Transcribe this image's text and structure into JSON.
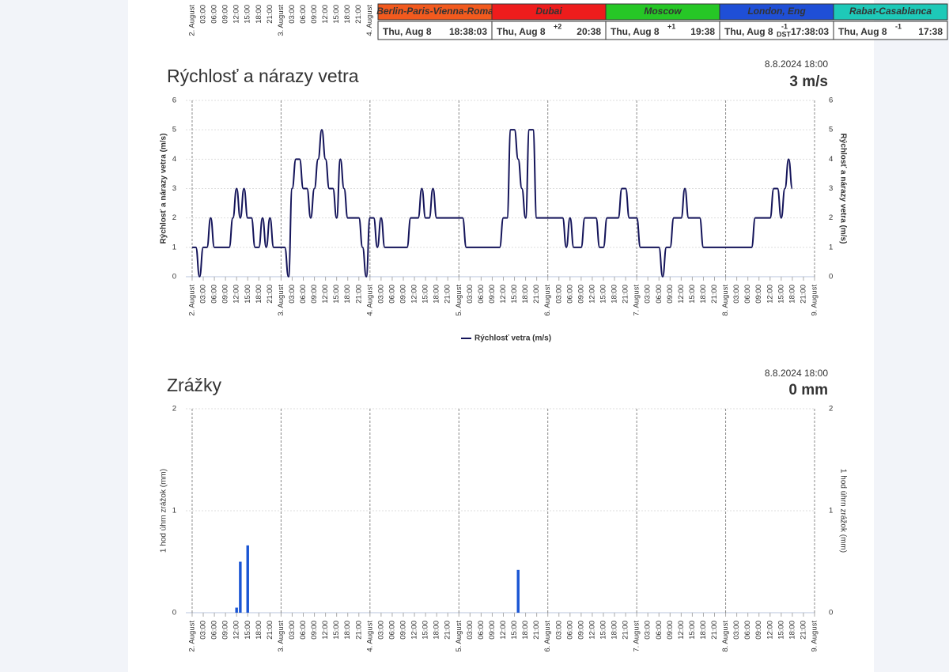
{
  "clocks": [
    {
      "city": "Berlin-Paris-Vienna-Roma",
      "color": "#f25a1e",
      "date": "Thu, Aug 8",
      "time": "18:38:03"
    },
    {
      "city": "Dubai",
      "color": "#ee1c1c",
      "date": "Thu, Aug 8",
      "offset": "+2",
      "time": "20:38"
    },
    {
      "city": "Moscow",
      "color": "#26c726",
      "date": "Thu, Aug 8",
      "offset": "+1",
      "time": "19:38"
    },
    {
      "city": "London, Eng",
      "color": "#1f4fd6",
      "date": "Thu, Aug 8",
      "offset": "-1",
      "dst": "DST",
      "time": "17:38:03"
    },
    {
      "city": "Rabat-Casablanca",
      "color": "#1ec9b8",
      "date": "Thu, Aug 8",
      "offset": "-1",
      "time": "17:38"
    }
  ],
  "top_axis_labels": [
    "2. August",
    "03:00",
    "06:00",
    "09:00",
    "12:00",
    "15:00",
    "18:00",
    "21:00",
    "3. August",
    "03:00",
    "06:00",
    "09:00",
    "12:00",
    "15:00",
    "18:00",
    "21:00",
    "4. August"
  ],
  "chart_data": [
    {
      "type": "line",
      "title": "Rýchlosť a nárazy vetra",
      "title_color": "#14145a",
      "timestamp": "8.8.2024 18:00",
      "current": "3 m/s",
      "ylabel": "Rýchlosť a nárazy vetra (m/s)",
      "y2label": "Rýchlosť a nárazy vetra (m/s)",
      "x": [
        0,
        1,
        2,
        3,
        4,
        5,
        6,
        7,
        8,
        9,
        10,
        11,
        12,
        13,
        14,
        15,
        16,
        17,
        18,
        19,
        20,
        21,
        22,
        23,
        24,
        25,
        26,
        27,
        28,
        29,
        30,
        31,
        32,
        33,
        34,
        35,
        36,
        37,
        38,
        39,
        40,
        41,
        42,
        43,
        44,
        45,
        46,
        47,
        48,
        49,
        50,
        51,
        52,
        53,
        54,
        55,
        56,
        57,
        58,
        59,
        60,
        61,
        62,
        63,
        64,
        65,
        66,
        67,
        68,
        69,
        70,
        71,
        72,
        73,
        74,
        75,
        76,
        77,
        78,
        79,
        80,
        81,
        82,
        83,
        84,
        85,
        86,
        87,
        88,
        89,
        90,
        91,
        92,
        93,
        94,
        95,
        96,
        97,
        98,
        99,
        100,
        101,
        102,
        103,
        104,
        105,
        106,
        107,
        108,
        109,
        110,
        111,
        112,
        113,
        114,
        115,
        116,
        117,
        118,
        119,
        120,
        121,
        122,
        123,
        124,
        125,
        126,
        127,
        128,
        129,
        130,
        131,
        132,
        133,
        134,
        135,
        136,
        137,
        138,
        139,
        140,
        141,
        142,
        143,
        144,
        145,
        146,
        147,
        148,
        149,
        150,
        151,
        152,
        153,
        154,
        155,
        156,
        157,
        158,
        159,
        160,
        161,
        162
      ],
      "series": [
        {
          "name": "Rýchlosť vetra (m/s)",
          "color": "#14145a",
          "values": [
            1,
            1,
            0,
            1,
            1,
            2,
            1,
            1,
            1,
            1,
            1,
            2,
            3,
            2,
            3,
            2,
            2,
            1,
            1,
            2,
            1,
            2,
            1,
            1,
            1,
            1,
            0,
            3,
            4,
            4,
            3,
            3,
            2,
            3,
            4,
            5,
            4,
            3,
            3,
            2,
            4,
            3,
            2,
            2,
            2,
            2,
            1,
            0,
            2,
            2,
            1,
            2,
            1,
            1,
            1,
            1,
            1,
            1,
            1,
            2,
            2,
            2,
            3,
            2,
            2,
            3,
            2,
            2,
            2,
            2,
            2,
            2,
            2,
            2,
            1,
            1,
            1,
            1,
            1,
            1,
            1,
            1,
            1,
            1,
            2,
            2,
            5,
            5,
            4,
            3,
            2,
            5,
            5,
            2,
            2,
            2,
            2,
            2,
            2,
            2,
            2,
            1,
            2,
            1,
            1,
            1,
            2,
            2,
            2,
            2,
            1,
            1,
            2,
            2,
            2,
            2,
            3,
            3,
            2,
            2,
            2,
            1,
            1,
            1,
            1,
            1,
            1,
            0,
            1,
            1,
            2,
            2,
            2,
            3,
            2,
            2,
            2,
            2,
            1,
            1,
            1,
            1,
            1,
            1,
            1,
            1,
            1,
            1,
            1,
            1,
            1,
            1,
            2,
            2,
            2,
            2,
            2,
            3,
            3,
            2,
            3,
            4,
            3
          ]
        }
      ],
      "xlim": [
        -1.7,
        168
      ],
      "xticks": [
        {
          "value": 0,
          "label": "2. August"
        },
        {
          "value": 3,
          "label": "03:00"
        },
        {
          "value": 6,
          "label": "06:00"
        },
        {
          "value": 9,
          "label": "09:00"
        },
        {
          "value": 12,
          "label": "12:00"
        },
        {
          "value": 15,
          "label": "15:00"
        },
        {
          "value": 18,
          "label": "18:00"
        },
        {
          "value": 21,
          "label": "21:00"
        },
        {
          "value": 24,
          "label": "3. August"
        },
        {
          "value": 27,
          "label": "03:00"
        },
        {
          "value": 30,
          "label": "06:00"
        },
        {
          "value": 33,
          "label": "09:00"
        },
        {
          "value": 36,
          "label": "12:00"
        },
        {
          "value": 39,
          "label": "15:00"
        },
        {
          "value": 42,
          "label": "18:00"
        },
        {
          "value": 45,
          "label": "21:00"
        },
        {
          "value": 48,
          "label": "4. August"
        },
        {
          "value": 51,
          "label": "03:00"
        },
        {
          "value": 54,
          "label": "06:00"
        },
        {
          "value": 57,
          "label": "09:00"
        },
        {
          "value": 60,
          "label": "12:00"
        },
        {
          "value": 63,
          "label": "15:00"
        },
        {
          "value": 66,
          "label": "18:00"
        },
        {
          "value": 69,
          "label": "21:00"
        },
        {
          "value": 72,
          "label": "5. August"
        },
        {
          "value": 75,
          "label": "03:00"
        },
        {
          "value": 78,
          "label": "06:00"
        },
        {
          "value": 81,
          "label": "09:00"
        },
        {
          "value": 84,
          "label": "12:00"
        },
        {
          "value": 87,
          "label": "15:00"
        },
        {
          "value": 90,
          "label": "18:00"
        },
        {
          "value": 93,
          "label": "21:00"
        },
        {
          "value": 96,
          "label": "6. August"
        },
        {
          "value": 99,
          "label": "03:00"
        },
        {
          "value": 102,
          "label": "06:00"
        },
        {
          "value": 105,
          "label": "09:00"
        },
        {
          "value": 108,
          "label": "12:00"
        },
        {
          "value": 111,
          "label": "15:00"
        },
        {
          "value": 114,
          "label": "18:00"
        },
        {
          "value": 117,
          "label": "21:00"
        },
        {
          "value": 120,
          "label": "7. August"
        },
        {
          "value": 123,
          "label": "03:00"
        },
        {
          "value": 126,
          "label": "06:00"
        },
        {
          "value": 129,
          "label": "09:00"
        },
        {
          "value": 132,
          "label": "12:00"
        },
        {
          "value": 135,
          "label": "15:00"
        },
        {
          "value": 138,
          "label": "18:00"
        },
        {
          "value": 141,
          "label": "21:00"
        },
        {
          "value": 144,
          "label": "8. August"
        },
        {
          "value": 147,
          "label": "03:00"
        },
        {
          "value": 150,
          "label": "06:00"
        },
        {
          "value": 153,
          "label": "09:00"
        },
        {
          "value": 156,
          "label": "12:00"
        },
        {
          "value": 159,
          "label": "15:00"
        },
        {
          "value": 162,
          "label": "18:00"
        },
        {
          "value": 165,
          "label": "21:00"
        },
        {
          "value": 168,
          "label": "9. August"
        }
      ],
      "ylim": [
        0,
        6
      ],
      "yticks": [
        0,
        1,
        2,
        3,
        4,
        5,
        6
      ],
      "y2lim": [
        0,
        6
      ],
      "y2ticks": [
        0,
        1,
        2,
        3,
        4,
        5,
        6
      ],
      "grid": true,
      "legend": "bottom"
    },
    {
      "type": "bar",
      "title": "Zrážky",
      "title_color": "#1a5fc8",
      "timestamp": "8.8.2024 18:00",
      "current": "0 mm",
      "ylabel": "1 hod úhrn zrážok (mm)",
      "y2label": "1 hod úhrn zrážok (mm)",
      "x": [
        12,
        13,
        15,
        88
      ],
      "values": [
        0.05,
        0.5,
        0.66,
        0.42
      ],
      "color": "#1a55d4",
      "xlim": [
        -1.7,
        168
      ],
      "xticks": [
        {
          "value": 0,
          "label": "2. August"
        },
        {
          "value": 3,
          "label": "03:00"
        },
        {
          "value": 6,
          "label": "06:00"
        },
        {
          "value": 9,
          "label": "09:00"
        },
        {
          "value": 12,
          "label": "12:00"
        },
        {
          "value": 15,
          "label": "15:00"
        },
        {
          "value": 18,
          "label": "18:00"
        },
        {
          "value": 21,
          "label": "21:00"
        },
        {
          "value": 24,
          "label": "3. August"
        },
        {
          "value": 27,
          "label": "03:00"
        },
        {
          "value": 30,
          "label": "06:00"
        },
        {
          "value": 33,
          "label": "09:00"
        },
        {
          "value": 36,
          "label": "12:00"
        },
        {
          "value": 39,
          "label": "15:00"
        },
        {
          "value": 42,
          "label": "18:00"
        },
        {
          "value": 45,
          "label": "21:00"
        },
        {
          "value": 48,
          "label": "4. August"
        },
        {
          "value": 51,
          "label": "03:00"
        },
        {
          "value": 54,
          "label": "06:00"
        },
        {
          "value": 57,
          "label": "09:00"
        },
        {
          "value": 60,
          "label": "12:00"
        },
        {
          "value": 63,
          "label": "15:00"
        },
        {
          "value": 66,
          "label": "18:00"
        },
        {
          "value": 69,
          "label": "21:00"
        },
        {
          "value": 72,
          "label": "5. August"
        },
        {
          "value": 75,
          "label": "03:00"
        },
        {
          "value": 78,
          "label": "06:00"
        },
        {
          "value": 81,
          "label": "09:00"
        },
        {
          "value": 84,
          "label": "12:00"
        },
        {
          "value": 87,
          "label": "15:00"
        },
        {
          "value": 90,
          "label": "18:00"
        },
        {
          "value": 93,
          "label": "21:00"
        },
        {
          "value": 96,
          "label": "6. August"
        },
        {
          "value": 99,
          "label": "03:00"
        },
        {
          "value": 102,
          "label": "06:00"
        },
        {
          "value": 105,
          "label": "09:00"
        },
        {
          "value": 108,
          "label": "12:00"
        },
        {
          "value": 111,
          "label": "15:00"
        },
        {
          "value": 114,
          "label": "18:00"
        },
        {
          "value": 117,
          "label": "21:00"
        },
        {
          "value": 120,
          "label": "7. August"
        },
        {
          "value": 123,
          "label": "03:00"
        },
        {
          "value": 126,
          "label": "06:00"
        },
        {
          "value": 129,
          "label": "09:00"
        },
        {
          "value": 132,
          "label": "12:00"
        },
        {
          "value": 135,
          "label": "15:00"
        },
        {
          "value": 138,
          "label": "18:00"
        },
        {
          "value": 141,
          "label": "21:00"
        },
        {
          "value": 144,
          "label": "8. August"
        },
        {
          "value": 147,
          "label": "03:00"
        },
        {
          "value": 150,
          "label": "06:00"
        },
        {
          "value": 153,
          "label": "09:00"
        },
        {
          "value": 156,
          "label": "12:00"
        },
        {
          "value": 159,
          "label": "15:00"
        },
        {
          "value": 162,
          "label": "18:00"
        },
        {
          "value": 165,
          "label": "21:00"
        },
        {
          "value": 168,
          "label": "9. August"
        }
      ],
      "ylim": [
        0,
        2
      ],
      "yticks": [
        0,
        1,
        2
      ],
      "y2lim": [
        0,
        2
      ],
      "y2ticks": [
        0,
        1,
        2
      ],
      "grid": true
    }
  ]
}
